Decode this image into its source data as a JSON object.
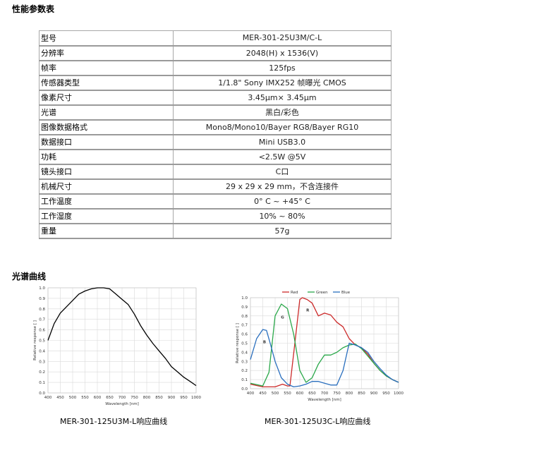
{
  "section_titles": {
    "performance": "性能参数表",
    "curves": "光谱曲线"
  },
  "spec_rows": [
    {
      "key": "型号",
      "value": "MER-301-25U3M/C-L"
    },
    {
      "key": "分辨率",
      "value": "2048(H) x 1536(V)"
    },
    {
      "key": "帧率",
      "value": "125fps"
    },
    {
      "key": "传感器类型",
      "value": "1/1.8\" Sony IMX252  帧曝光 CMOS"
    },
    {
      "key": "像素尺寸",
      "value": "3.45μm× 3.45μm"
    },
    {
      "key": "光谱",
      "value": "黑白/彩色"
    },
    {
      "key": "图像数据格式",
      "value": "Mono8/Mono10/Bayer RG8/Bayer RG10"
    },
    {
      "key": "数据接口",
      "value": "Mini USB3.0"
    },
    {
      "key": "功耗",
      "value": "<2.5W @5V"
    },
    {
      "key": "镜头接口",
      "value": "C口"
    },
    {
      "key": "机械尺寸",
      "value": "29 x 29 x 29 mm，不含连接件"
    },
    {
      "key": "工作温度",
      "value": "0° C ~ +45° C"
    },
    {
      "key": "工作湿度",
      "value": "10% ~ 80%"
    },
    {
      "key": "重量",
      "value": "57g"
    }
  ],
  "chart_data": [
    {
      "type": "line",
      "caption": "MER-301-125U3M-L响应曲线",
      "xlabel": "Wavelength [nm]",
      "ylabel": "Relative response [ ]",
      "xlim": [
        400,
        1000
      ],
      "ylim": [
        0,
        1.0
      ],
      "xticks": [
        400,
        450,
        500,
        550,
        600,
        650,
        700,
        750,
        800,
        850,
        900,
        950,
        1000
      ],
      "yticks": [
        0.0,
        0.1,
        0.2,
        0.3,
        0.4,
        0.5,
        0.6,
        0.7,
        0.8,
        0.9,
        1.0
      ],
      "grid": true,
      "series": [
        {
          "color": "#000000",
          "x": [
            400,
            425,
            450,
            475,
            500,
            525,
            550,
            575,
            600,
            625,
            650,
            675,
            700,
            725,
            750,
            775,
            800,
            825,
            850,
            875,
            900,
            925,
            950,
            975,
            1000
          ],
          "y": [
            0.5,
            0.66,
            0.76,
            0.82,
            0.88,
            0.94,
            0.97,
            0.99,
            1.0,
            1.0,
            0.99,
            0.94,
            0.89,
            0.84,
            0.75,
            0.64,
            0.55,
            0.47,
            0.4,
            0.33,
            0.25,
            0.2,
            0.15,
            0.11,
            0.07
          ]
        }
      ]
    },
    {
      "type": "line",
      "caption": "MER-301-125U3C-L响应曲线",
      "xlabel": "Wavelength [nm]",
      "ylabel": "Relative response [ ]",
      "xlim": [
        400,
        1000
      ],
      "ylim": [
        0,
        1.0
      ],
      "xticks": [
        400,
        450,
        500,
        550,
        600,
        650,
        700,
        750,
        800,
        850,
        900,
        950,
        1000
      ],
      "yticks": [
        0.0,
        0.1,
        0.2,
        0.3,
        0.4,
        0.5,
        0.6,
        0.7,
        0.8,
        0.9,
        1.0
      ],
      "grid": true,
      "legend": "top",
      "annotations": [
        {
          "text": "R",
          "x": 632,
          "y": 0.85
        },
        {
          "text": "G",
          "x": 530,
          "y": 0.77
        },
        {
          "text": "B",
          "x": 457,
          "y": 0.5
        }
      ],
      "series": [
        {
          "name": "Red",
          "color": "#cc2a2a",
          "x": [
            400,
            450,
            500,
            530,
            550,
            560,
            580,
            600,
            610,
            630,
            650,
            675,
            700,
            725,
            750,
            775,
            800,
            825,
            850,
            875,
            900,
            925,
            950,
            975,
            1000
          ],
          "y": [
            0.05,
            0.02,
            0.02,
            0.05,
            0.03,
            0.03,
            0.5,
            0.98,
            1.0,
            0.98,
            0.94,
            0.8,
            0.83,
            0.81,
            0.73,
            0.68,
            0.55,
            0.48,
            0.45,
            0.38,
            0.28,
            0.2,
            0.14,
            0.1,
            0.07
          ]
        },
        {
          "name": "Green",
          "color": "#2aa84a",
          "x": [
            400,
            450,
            475,
            500,
            525,
            550,
            575,
            600,
            625,
            650,
            675,
            700,
            725,
            750,
            775,
            800,
            825,
            850,
            875,
            900,
            925,
            950,
            975,
            1000
          ],
          "y": [
            0.06,
            0.03,
            0.18,
            0.8,
            0.93,
            0.88,
            0.6,
            0.2,
            0.07,
            0.12,
            0.27,
            0.37,
            0.37,
            0.4,
            0.45,
            0.48,
            0.49,
            0.44,
            0.36,
            0.28,
            0.2,
            0.14,
            0.1,
            0.07
          ]
        },
        {
          "name": "Blue",
          "color": "#2a6fbe",
          "x": [
            400,
            425,
            450,
            465,
            480,
            500,
            525,
            550,
            575,
            600,
            625,
            650,
            675,
            700,
            725,
            750,
            775,
            800,
            825,
            850,
            875,
            900,
            925,
            950,
            975,
            1000
          ],
          "y": [
            0.32,
            0.55,
            0.65,
            0.64,
            0.5,
            0.3,
            0.12,
            0.05,
            0.02,
            0.03,
            0.05,
            0.08,
            0.08,
            0.06,
            0.04,
            0.04,
            0.2,
            0.5,
            0.48,
            0.45,
            0.4,
            0.3,
            0.22,
            0.15,
            0.1,
            0.07
          ]
        }
      ]
    }
  ]
}
